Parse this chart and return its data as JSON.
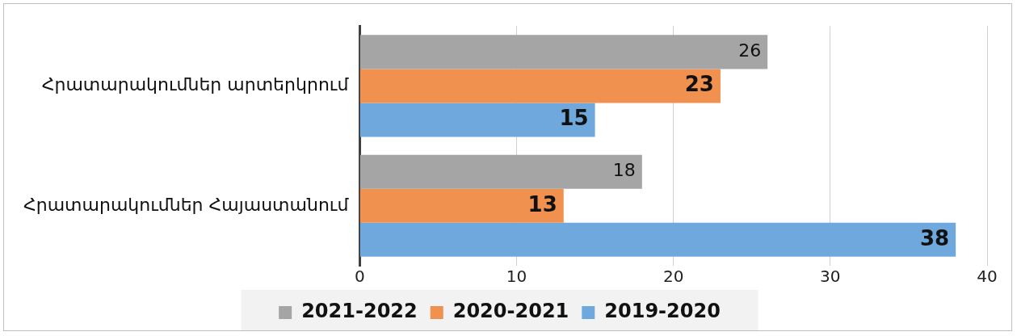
{
  "chart_data": {
    "type": "bar",
    "orientation": "horizontal",
    "categories": [
      "Հրատարակումներ արտերկրում",
      "Հրատարակումներ Հայաստանում"
    ],
    "series": [
      {
        "name": "2021-2022",
        "color": "#a5a5a5",
        "values": [
          26,
          18
        ]
      },
      {
        "name": "2020-2021",
        "color": "#f0914f",
        "values": [
          23,
          13
        ]
      },
      {
        "name": "2019-2020",
        "color": "#6fa8dc",
        "values": [
          15,
          38
        ]
      }
    ],
    "xlim": [
      0,
      40
    ],
    "xticks": [
      0,
      10,
      20,
      30,
      40
    ],
    "grid": "x",
    "legend": "bottom",
    "data_labels": true
  }
}
